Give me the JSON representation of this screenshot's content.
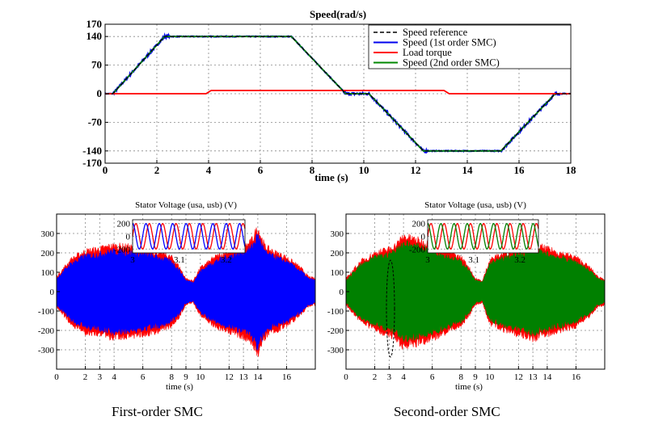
{
  "chart_data": [
    {
      "type": "line",
      "title": "Speed(rad/s)",
      "xlabel": "time (s)",
      "ylabel": "",
      "xlim": [
        0,
        18
      ],
      "ylim": [
        -170,
        170
      ],
      "xticks": [
        0,
        2,
        4,
        6,
        8,
        10,
        12,
        14,
        16,
        18
      ],
      "yticks": [
        -170,
        -140,
        -70,
        0,
        70,
        140,
        170
      ],
      "grid": true,
      "legend_position": "top-right",
      "series": [
        {
          "name": "Speed reference",
          "color": "#000000",
          "style": "dashed",
          "x": [
            0,
            0.3,
            2.3,
            7.2,
            9.3,
            10.2,
            12.3,
            15.3,
            17.4,
            18
          ],
          "y": [
            0,
            0,
            140,
            140,
            0,
            0,
            -140,
            -140,
            0,
            0
          ]
        },
        {
          "name": "Speed (1st order SMC)",
          "color": "#0000ee",
          "style": "solid-noisy",
          "x": [
            0,
            0.3,
            2.3,
            7.2,
            9.3,
            10.2,
            12.3,
            15.3,
            17.4,
            18
          ],
          "y": [
            0,
            0,
            140,
            140,
            0,
            0,
            -140,
            -140,
            0,
            0
          ]
        },
        {
          "name": "Load torque",
          "color": "#ff0000",
          "style": "solid",
          "x": [
            0,
            3.9,
            4.1,
            13.1,
            13.3,
            18
          ],
          "y": [
            0,
            0,
            8,
            8,
            0,
            0
          ]
        },
        {
          "name": "Speed (2nd order SMC)",
          "color": "#008800",
          "style": "solid",
          "x": [
            0,
            0.3,
            2.3,
            7.2,
            9.3,
            10.2,
            12.3,
            15.3,
            17.4,
            18
          ],
          "y": [
            0,
            0,
            140,
            140,
            0,
            0,
            -140,
            -140,
            0,
            0
          ]
        }
      ]
    },
    {
      "type": "line",
      "title": "Stator Voltage (usa, usb) (V)",
      "xlabel": "time (s)",
      "xlim": [
        0,
        18
      ],
      "ylim": [
        -400,
        400
      ],
      "xticks": [
        0,
        2,
        3,
        4,
        6,
        8,
        9,
        10,
        12,
        13,
        14,
        16
      ],
      "yticks": [
        -300,
        -200,
        -100,
        0,
        100,
        200,
        300
      ],
      "grid": true,
      "series": [
        {
          "name": "usa",
          "color": "#ff0000"
        },
        {
          "name": "usb",
          "color": "#0000ff"
        }
      ],
      "envelope": {
        "x": [
          0,
          0.5,
          1,
          2,
          3,
          3.5,
          4,
          5,
          6,
          7,
          8,
          8.5,
          9,
          9.5,
          10,
          11,
          12,
          12.5,
          13,
          13.5,
          14,
          14.5,
          15,
          16,
          17,
          17.5,
          18
        ],
        "amp": [
          70,
          110,
          150,
          190,
          200,
          210,
          215,
          210,
          200,
          185,
          160,
          120,
          60,
          50,
          110,
          160,
          190,
          200,
          210,
          230,
          300,
          210,
          190,
          160,
          110,
          70,
          60
        ]
      },
      "inset": {
        "xlim": [
          3,
          3.24
        ],
        "ylim": [
          -260,
          260
        ],
        "xticks": [
          3,
          3.1,
          3.2
        ],
        "yticks": [
          200,
          0,
          -200
        ],
        "amplitude": 200,
        "frequency_hz": 35
      }
    },
    {
      "type": "line",
      "title": "Stator Voltage (usa, usb) (V)",
      "xlabel": "time (s)",
      "xlim": [
        0,
        18
      ],
      "ylim": [
        -400,
        400
      ],
      "xticks": [
        0,
        2,
        3,
        4,
        6,
        8,
        9,
        10,
        12,
        13,
        14,
        16
      ],
      "yticks": [
        -300,
        -200,
        -100,
        0,
        100,
        200,
        300
      ],
      "grid": true,
      "series": [
        {
          "name": "usa",
          "color": "#ff0000"
        },
        {
          "name": "usb",
          "color": "#008000"
        }
      ],
      "envelope": {
        "x": [
          0,
          0.5,
          1,
          2,
          3,
          3.5,
          4,
          5,
          6,
          7,
          8,
          8.5,
          9,
          9.5,
          10,
          11,
          12,
          12.5,
          13,
          13.5,
          14,
          14.5,
          15,
          16,
          17,
          17.5,
          18
        ],
        "amp": [
          60,
          100,
          140,
          180,
          200,
          220,
          260,
          240,
          220,
          190,
          160,
          120,
          60,
          50,
          150,
          180,
          200,
          210,
          220,
          210,
          200,
          190,
          180,
          160,
          110,
          70,
          60
        ]
      },
      "inset": {
        "xlim": [
          3,
          3.24
        ],
        "ylim": [
          -260,
          260
        ],
        "xticks": [
          3,
          3.1,
          3.2
        ],
        "yticks": [
          200,
          0,
          -200
        ],
        "amplitude": 200,
        "frequency_hz": 35
      }
    }
  ],
  "captions": {
    "left": "First-order SMC",
    "right": "Second-order SMC"
  }
}
